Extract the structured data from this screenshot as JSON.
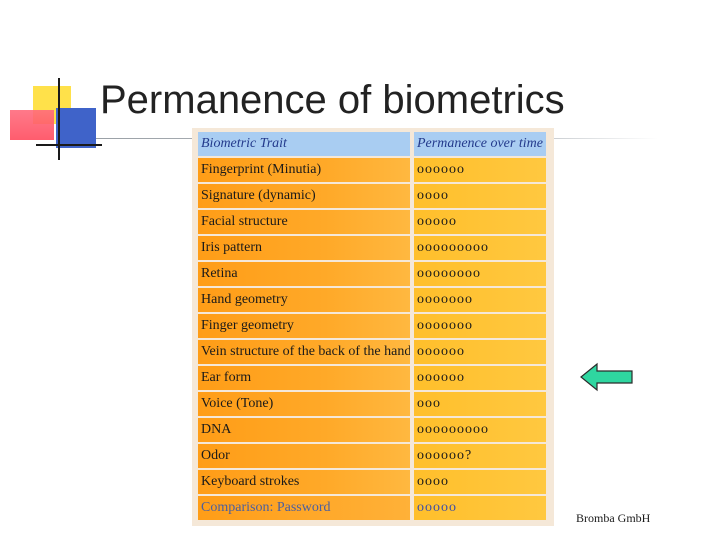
{
  "slide": {
    "title": "Permanence of biometrics",
    "footer": "Bromba GmbH"
  },
  "table": {
    "headers": [
      "Biometric Trait",
      "Permanence over time"
    ],
    "rows": [
      {
        "trait": "Fingerprint (Minutia)",
        "permanence": "oooooo"
      },
      {
        "trait": "Signature (dynamic)",
        "permanence": "oooo"
      },
      {
        "trait": "Facial structure",
        "permanence": "ooooo"
      },
      {
        "trait": "Iris pattern",
        "permanence": "ooooooooo"
      },
      {
        "trait": "Retina",
        "permanence": "oooooooo"
      },
      {
        "trait": "Hand geometry",
        "permanence": "ooooooo"
      },
      {
        "trait": "Finger geometry",
        "permanence": "ooooooo"
      },
      {
        "trait": "Vein structure of the back of the hand",
        "permanence": "oooooo"
      },
      {
        "trait": "Ear form",
        "permanence": "oooooo"
      },
      {
        "trait": "Voice (Tone)",
        "permanence": "ooo"
      },
      {
        "trait": "DNA",
        "permanence": "ooooooooo"
      },
      {
        "trait": "Odor",
        "permanence": "oooooo?"
      },
      {
        "trait": "Keyboard strokes",
        "permanence": "oooo"
      },
      {
        "trait": "Comparison: Password",
        "permanence": "ooooo"
      }
    ]
  },
  "colors": {
    "header_bg": "#a9cdf2",
    "trait_bg": "#ff9d17",
    "value_bg": "#ffbf2b",
    "arrow_fill": "#2fd6a0"
  },
  "icons": {
    "arrow": "left-arrow-icon"
  }
}
